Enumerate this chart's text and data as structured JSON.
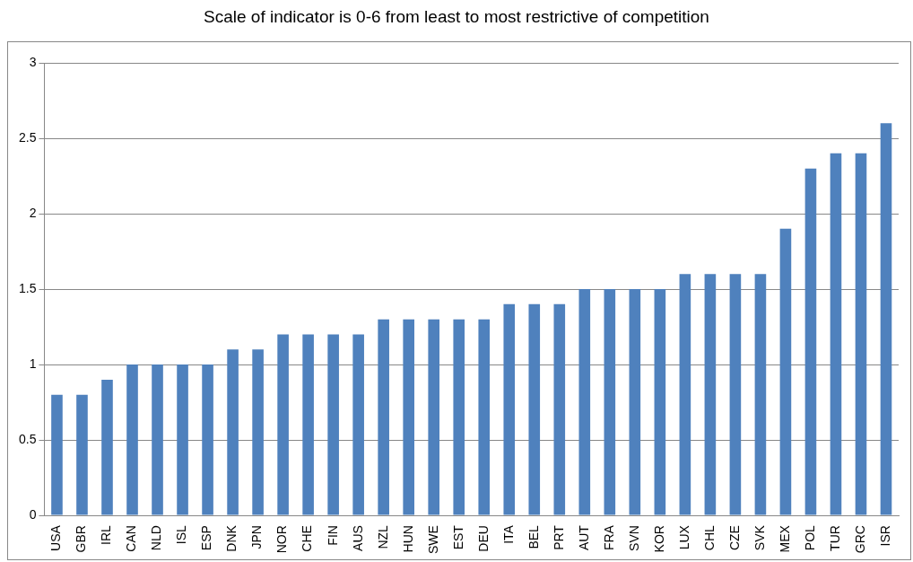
{
  "chart_data": {
    "type": "bar",
    "title": "Scale of indicator is 0-6 from least to most restrictive of competition",
    "categories": [
      "USA",
      "GBR",
      "IRL",
      "CAN",
      "NLD",
      "ISL",
      "ESP",
      "DNK",
      "JPN",
      "NOR",
      "CHE",
      "FIN",
      "AUS",
      "NZL",
      "HUN",
      "SWE",
      "EST",
      "DEU",
      "ITA",
      "BEL",
      "PRT",
      "AUT",
      "FRA",
      "SVN",
      "KOR",
      "LUX",
      "CHL",
      "CZE",
      "SVK",
      "MEX",
      "POL",
      "TUR",
      "GRC",
      "ISR"
    ],
    "values": [
      0.8,
      0.8,
      0.9,
      1,
      1,
      1,
      1,
      1.1,
      1.1,
      1.2,
      1.2,
      1.2,
      1.2,
      1.3,
      1.3,
      1.3,
      1.3,
      1.3,
      1.4,
      1.4,
      1.4,
      1.5,
      1.5,
      1.5,
      1.5,
      1.6,
      1.6,
      1.6,
      1.6,
      1.9,
      2.3,
      2.4,
      2.4,
      2.6
    ],
    "color": "#4f81bd",
    "ylim": [
      0,
      3
    ],
    "yticks": [
      0,
      0.5,
      1,
      1.5,
      2,
      2.5,
      3
    ],
    "grid": "y",
    "legend": false
  }
}
